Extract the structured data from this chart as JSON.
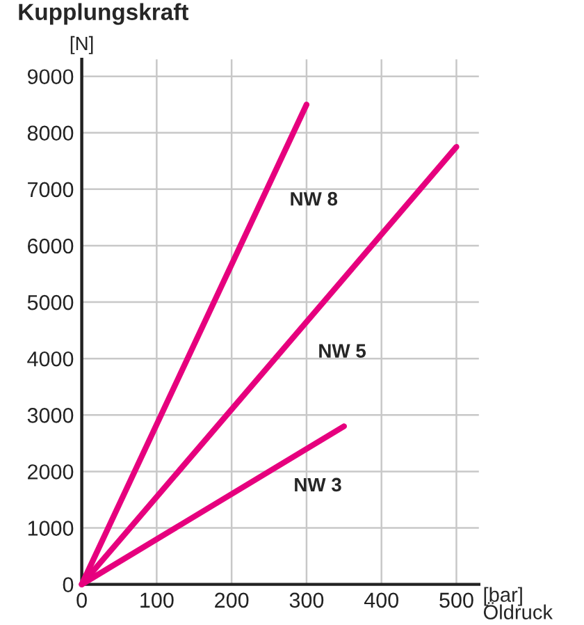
{
  "chart_data": {
    "type": "line",
    "title": "Kupplungskraft",
    "ylabel": "[N]",
    "xlabel": "[bar]\nÖldruck",
    "series": [
      {
        "name": "NW 8",
        "color": "#e6007e",
        "x": [
          0,
          300
        ],
        "values": [
          0,
          8500
        ]
      },
      {
        "name": "NW 5",
        "color": "#e6007e",
        "x": [
          0,
          500
        ],
        "values": [
          0,
          7750
        ]
      },
      {
        "name": "NW 3",
        "color": "#e6007e",
        "x": [
          0,
          350
        ],
        "values": [
          0,
          2800
        ]
      }
    ],
    "xlim": [
      0,
      530
    ],
    "ylim": [
      0,
      9300
    ],
    "xticks": [
      0,
      100,
      200,
      300,
      400,
      500
    ],
    "yticks": [
      0,
      1000,
      2000,
      3000,
      4000,
      5000,
      6000,
      7000,
      8000,
      9000
    ],
    "grid": true,
    "legend": false,
    "marker": "none",
    "line_style": "solid"
  }
}
